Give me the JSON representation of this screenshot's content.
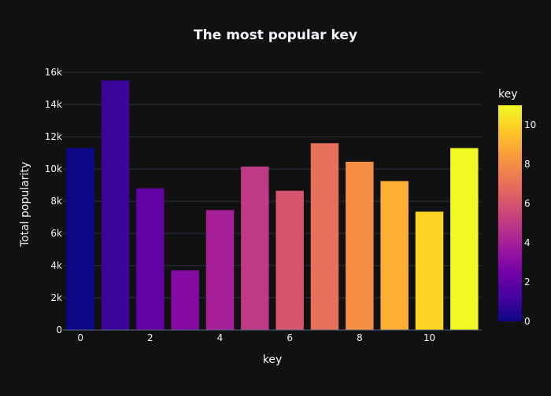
{
  "chart_data": {
    "type": "bar",
    "title": "The most popular key",
    "xlabel": "key",
    "ylabel": "Total popularity",
    "x": [
      0,
      1,
      2,
      3,
      4,
      5,
      6,
      7,
      8,
      9,
      10,
      11
    ],
    "values": [
      11300,
      15500,
      8800,
      3700,
      7450,
      10150,
      8650,
      11600,
      10450,
      9250,
      7350,
      11300
    ],
    "x_ticks": [
      0,
      2,
      4,
      6,
      8,
      10
    ],
    "x_tick_labels": [
      "0",
      "2",
      "4",
      "6",
      "8",
      "10"
    ],
    "y_ticks": [
      0,
      2000,
      4000,
      6000,
      8000,
      10000,
      12000,
      14000,
      16000
    ],
    "y_tick_labels": [
      "0",
      "2k",
      "4k",
      "6k",
      "8k",
      "10k",
      "12k",
      "14k",
      "16k"
    ],
    "ylim": [
      0,
      16300
    ],
    "xlim": [
      -0.5,
      11.5
    ],
    "grid": true,
    "colorbar": {
      "title": "key",
      "range": [
        0,
        11
      ],
      "ticks": [
        0,
        2,
        4,
        6,
        8,
        10
      ],
      "tick_labels": [
        "0",
        "2",
        "4",
        "6",
        "8",
        "10"
      ],
      "colorscale": [
        "#0d0887",
        "#46039f",
        "#7201a8",
        "#9c179e",
        "#bd3786",
        "#d8576b",
        "#ed7953",
        "#fb9f3a",
        "#fdca26",
        "#f0f921"
      ]
    },
    "colors": {
      "background": "#111111",
      "grid": "#283442",
      "text": "#f2f5fa"
    }
  }
}
